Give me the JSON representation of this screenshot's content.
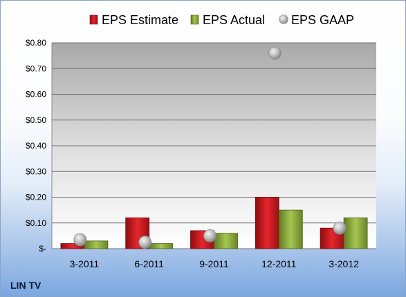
{
  "company": "LIN TV",
  "chart_data": {
    "type": "bar",
    "categories": [
      "3-2011",
      "6-2011",
      "9-2011",
      "12-2011",
      "3-2012"
    ],
    "series": [
      {
        "name": "EPS Estimate",
        "kind": "bar",
        "color": "#c0161c",
        "values": [
          0.02,
          0.12,
          0.07,
          0.2,
          0.08
        ]
      },
      {
        "name": "EPS Actual",
        "kind": "bar",
        "color": "#8cac3a",
        "values": [
          0.03,
          0.02,
          0.06,
          0.15,
          0.12
        ]
      },
      {
        "name": "EPS GAAP",
        "kind": "marker",
        "color": "#b8b8b8",
        "values": [
          0.035,
          0.025,
          0.05,
          0.76,
          0.08
        ]
      }
    ],
    "ylim": [
      0,
      0.8
    ],
    "yticks": [
      "$-",
      "$0.10",
      "$0.20",
      "$0.30",
      "$0.40",
      "$0.50",
      "$0.60",
      "$0.70",
      "$0.80"
    ],
    "ytick_values": [
      0,
      0.1,
      0.2,
      0.3,
      0.4,
      0.5,
      0.6,
      0.7,
      0.8
    ],
    "grid": true,
    "legend_position": "top"
  }
}
